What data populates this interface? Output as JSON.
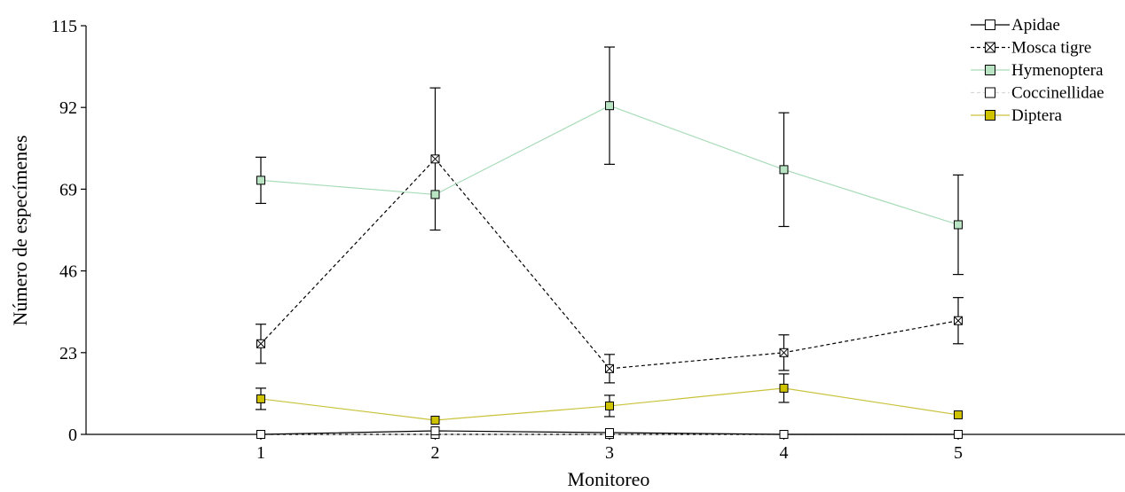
{
  "chart_data": {
    "type": "line",
    "xlabel": "Monitoreo",
    "ylabel": "Número de especímenes",
    "categories": [
      "1",
      "2",
      "3",
      "4",
      "5"
    ],
    "yticks": [
      0,
      23,
      46,
      69,
      92,
      115
    ],
    "ylim": [
      0,
      115
    ],
    "grid": false,
    "legend_position": "top-right",
    "series": [
      {
        "name": "Apidae",
        "values": [
          0,
          1,
          0.5,
          0,
          0
        ],
        "errors": [
          0,
          0,
          0,
          0,
          0
        ],
        "line_color": "#000000",
        "line_style": "solid",
        "marker_fill": "#ffffff",
        "marker_style": "square"
      },
      {
        "name": "Mosca tigre",
        "values": [
          25.5,
          77.5,
          18.5,
          23,
          32
        ],
        "errors": [
          5.5,
          20,
          4,
          5,
          6.5
        ],
        "line_color": "#000000",
        "line_style": "dashed",
        "marker_fill": "#ffffff",
        "marker_style": "square-x"
      },
      {
        "name": "Hymenoptera",
        "values": [
          71.5,
          67.5,
          92.5,
          74.5,
          59
        ],
        "errors": [
          6.5,
          0,
          16.5,
          16,
          14
        ],
        "line_color": "#a8dcb8",
        "line_style": "solid",
        "marker_fill": "#b9e4c4",
        "marker_style": "square"
      },
      {
        "name": "Coccinellidae",
        "values": [
          0,
          0,
          0,
          0,
          0
        ],
        "errors": [
          0,
          0,
          0,
          0,
          0
        ],
        "line_color": "#d8d8d8",
        "line_style": "dashed",
        "marker_fill": "#ffffff",
        "marker_style": "square"
      },
      {
        "name": "Diptera",
        "values": [
          10,
          4,
          8,
          13,
          5.5
        ],
        "errors": [
          3,
          0,
          3,
          4,
          0
        ],
        "line_color": "#c9c23a",
        "line_style": "solid",
        "marker_fill": "#cfc300",
        "marker_style": "square"
      }
    ]
  }
}
